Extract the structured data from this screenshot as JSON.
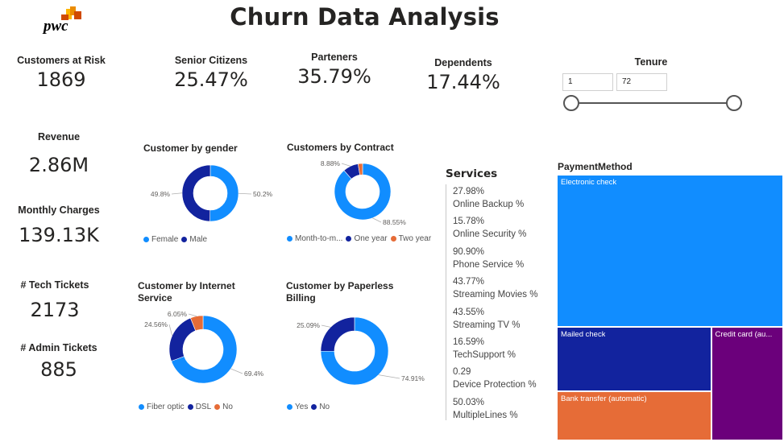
{
  "header": {
    "logo_text": "pwc",
    "title": "Churn Data Analysis"
  },
  "colors": {
    "blue": "#118DFF",
    "navy": "#12239E",
    "orange": "#E66C37",
    "purple": "#6B007B",
    "logo_red": "#D04A02",
    "logo_orange": "#EB8C00",
    "logo_yellow": "#FFB600"
  },
  "kpis": {
    "customers_at_risk": {
      "label": "Customers at Risk",
      "value": "1869"
    },
    "senior_citizens": {
      "label": "Senior Citizens",
      "value": "25.47%"
    },
    "partners": {
      "label": "Parteners",
      "value": "35.79%"
    },
    "dependents": {
      "label": "Dependents",
      "value": "17.44%"
    },
    "revenue": {
      "label": "Revenue",
      "value": "2.86M"
    },
    "monthly_charges": {
      "label": "Monthly Charges",
      "value": "139.13K"
    },
    "tech_tickets": {
      "label": "# Tech Tickets",
      "value": "2173"
    },
    "admin_tickets": {
      "label": "# Admin Tickets",
      "value": "885"
    }
  },
  "tenure_slicer": {
    "label": "Tenure",
    "min_value": "1",
    "max_value": "72",
    "range": [
      1,
      72
    ],
    "selected": [
      1,
      72
    ]
  },
  "services": {
    "title": "Services",
    "items": [
      {
        "value": "27.98%",
        "label": "Online Backup %"
      },
      {
        "value": "15.78%",
        "label": "Online Security %"
      },
      {
        "value": "90.90%",
        "label": "Phone Service %"
      },
      {
        "value": "43.77%",
        "label": "Streaming Movies %"
      },
      {
        "value": "43.55%",
        "label": "Streaming TV %"
      },
      {
        "value": "16.59%",
        "label": "TechSupport %"
      },
      {
        "value": "0.29",
        "label": "Device Protection %"
      },
      {
        "value": "50.03%",
        "label": "MultipleLines %"
      }
    ]
  },
  "chart_data": [
    {
      "type": "pie",
      "id": "gender",
      "title": "Customer by gender",
      "labels": [
        "Female",
        "Male"
      ],
      "legend_labels": [
        "Female",
        "Male"
      ],
      "values": [
        50.2,
        49.8
      ],
      "value_labels": [
        "50.2%",
        "49.8%"
      ],
      "colors": [
        "#118DFF",
        "#12239E"
      ],
      "legend": "bottom"
    },
    {
      "type": "pie",
      "id": "contract",
      "title": "Customers by Contract",
      "labels": [
        "Month-to-month",
        "One year",
        "Two year"
      ],
      "legend_labels": [
        "Month-to-m...",
        "One year",
        "Two year"
      ],
      "values": [
        88.55,
        8.88,
        2.57
      ],
      "value_labels": [
        "88.55%",
        "8.88%",
        ""
      ],
      "colors": [
        "#118DFF",
        "#12239E",
        "#E66C37"
      ],
      "legend": "bottom"
    },
    {
      "type": "pie",
      "id": "internet",
      "title": "Customer by Internet Service",
      "labels": [
        "Fiber optic",
        "DSL",
        "No"
      ],
      "legend_labels": [
        "Fiber optic",
        "DSL",
        "No"
      ],
      "values": [
        69.4,
        24.56,
        6.05
      ],
      "value_labels": [
        "69.4%",
        "24.56%",
        "6.05%"
      ],
      "colors": [
        "#118DFF",
        "#12239E",
        "#E66C37"
      ],
      "legend": "bottom"
    },
    {
      "type": "pie",
      "id": "paperless",
      "title": "Customer by Paperless Billing",
      "labels": [
        "Yes",
        "No"
      ],
      "legend_labels": [
        "Yes",
        "No"
      ],
      "values": [
        74.91,
        25.09
      ],
      "value_labels": [
        "74.91%",
        "25.09%"
      ],
      "colors": [
        "#118DFF",
        "#12239E"
      ],
      "legend": "bottom"
    },
    {
      "type": "treemap",
      "id": "payment",
      "title": "PaymentMethod",
      "labels": [
        "Electronic check",
        "Mailed check",
        "Bank transfer (automatic)",
        "Credit card (au..."
      ],
      "values": [
        57.3,
        16.5,
        12.6,
        13.6
      ],
      "colors": [
        "#118DFF",
        "#12239E",
        "#E66C37",
        "#6B007B"
      ]
    }
  ]
}
